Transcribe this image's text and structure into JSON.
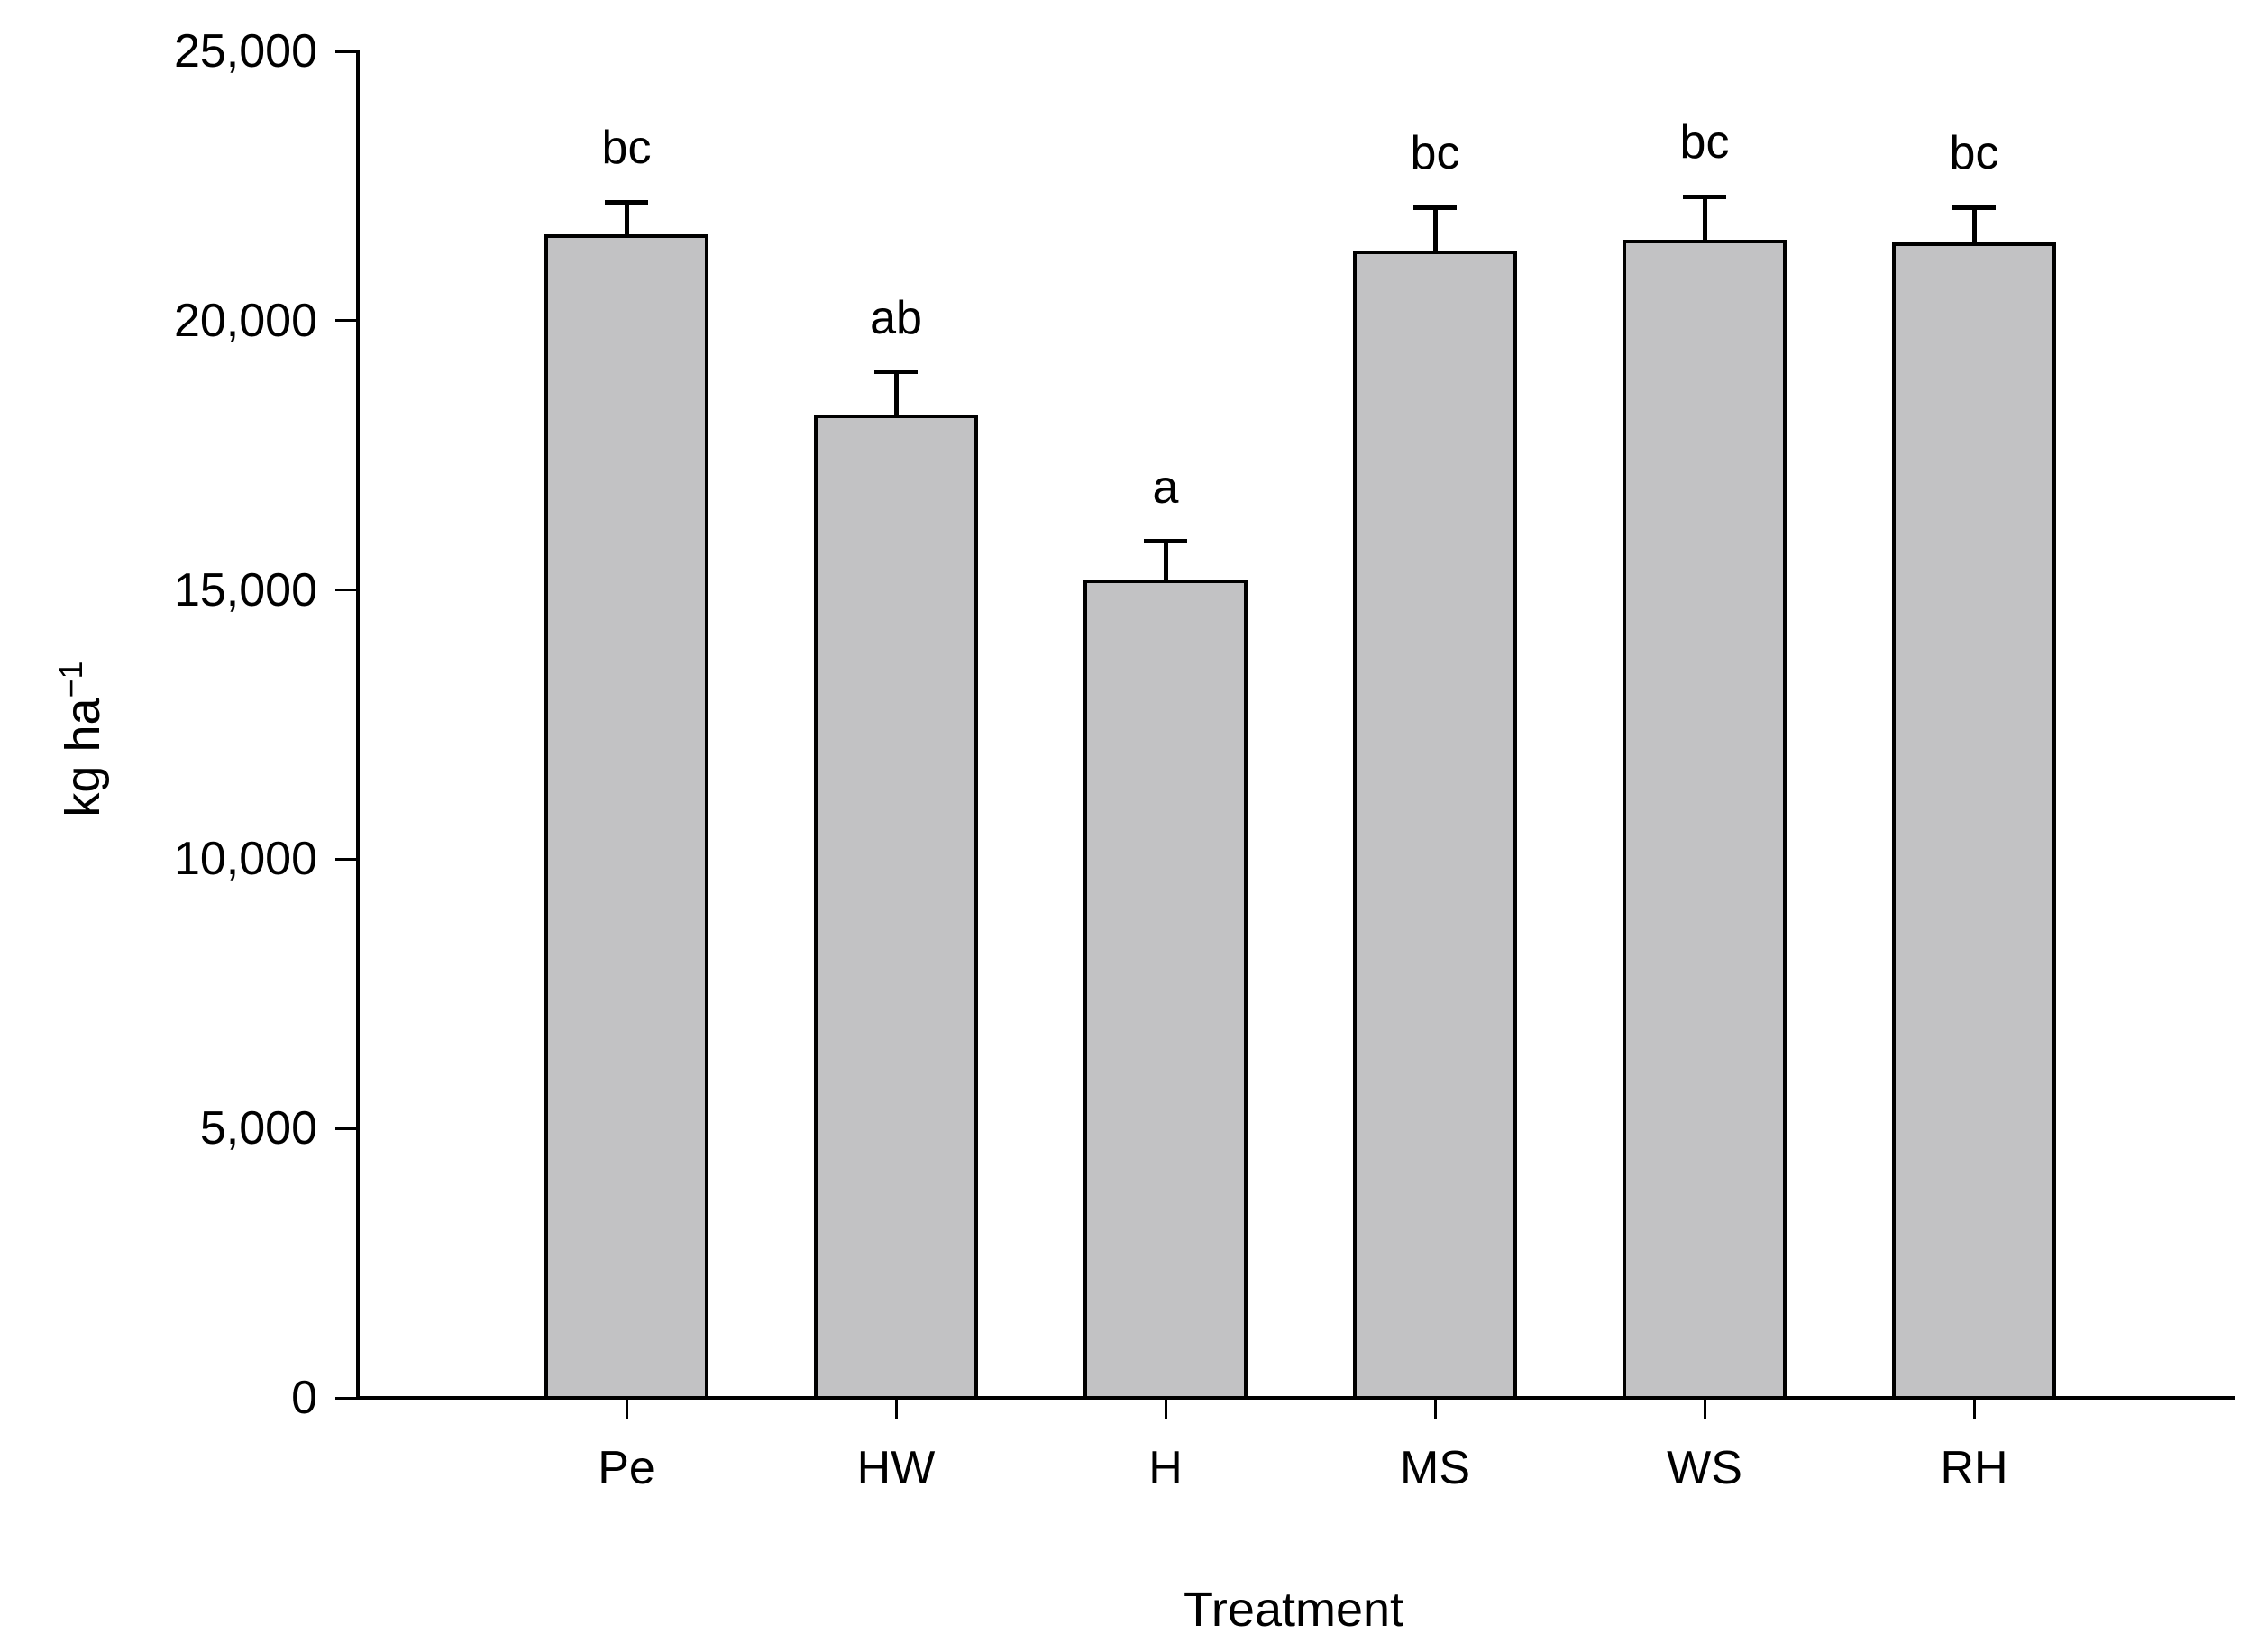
{
  "figure": {
    "background_color": "#ffffff",
    "text_color": "#000000"
  },
  "chart_data": {
    "type": "bar",
    "title": "",
    "xlabel": "Treatment",
    "ylabel": "kg ha⁻¹",
    "ylabel_base": "kg ha",
    "ylabel_exponent": "−1",
    "categories": [
      "Pe",
      "HW",
      "H",
      "MS",
      "WS",
      "RH"
    ],
    "values": [
      21600,
      18250,
      15200,
      21300,
      21500,
      21450
    ],
    "errors_plus": [
      600,
      800,
      700,
      800,
      800,
      650
    ],
    "significance_letters": [
      "bc",
      "ab",
      "a",
      "bc",
      "bc",
      "bc"
    ],
    "ylim": [
      0,
      25000
    ],
    "yticks": [
      {
        "value": 25000,
        "label": "25,000"
      },
      {
        "value": 20000,
        "label": "20,000"
      },
      {
        "value": 15000,
        "label": "15,000"
      },
      {
        "value": 10000,
        "label": "10,000"
      },
      {
        "value": 5000,
        "label": "5,000"
      },
      {
        "value": 0,
        "label": "0"
      }
    ],
    "bar_fill_color": "#c2c2c4",
    "bar_border_color": "#000000",
    "axis_color": "#000000",
    "grid": false,
    "legend_position": "none"
  }
}
